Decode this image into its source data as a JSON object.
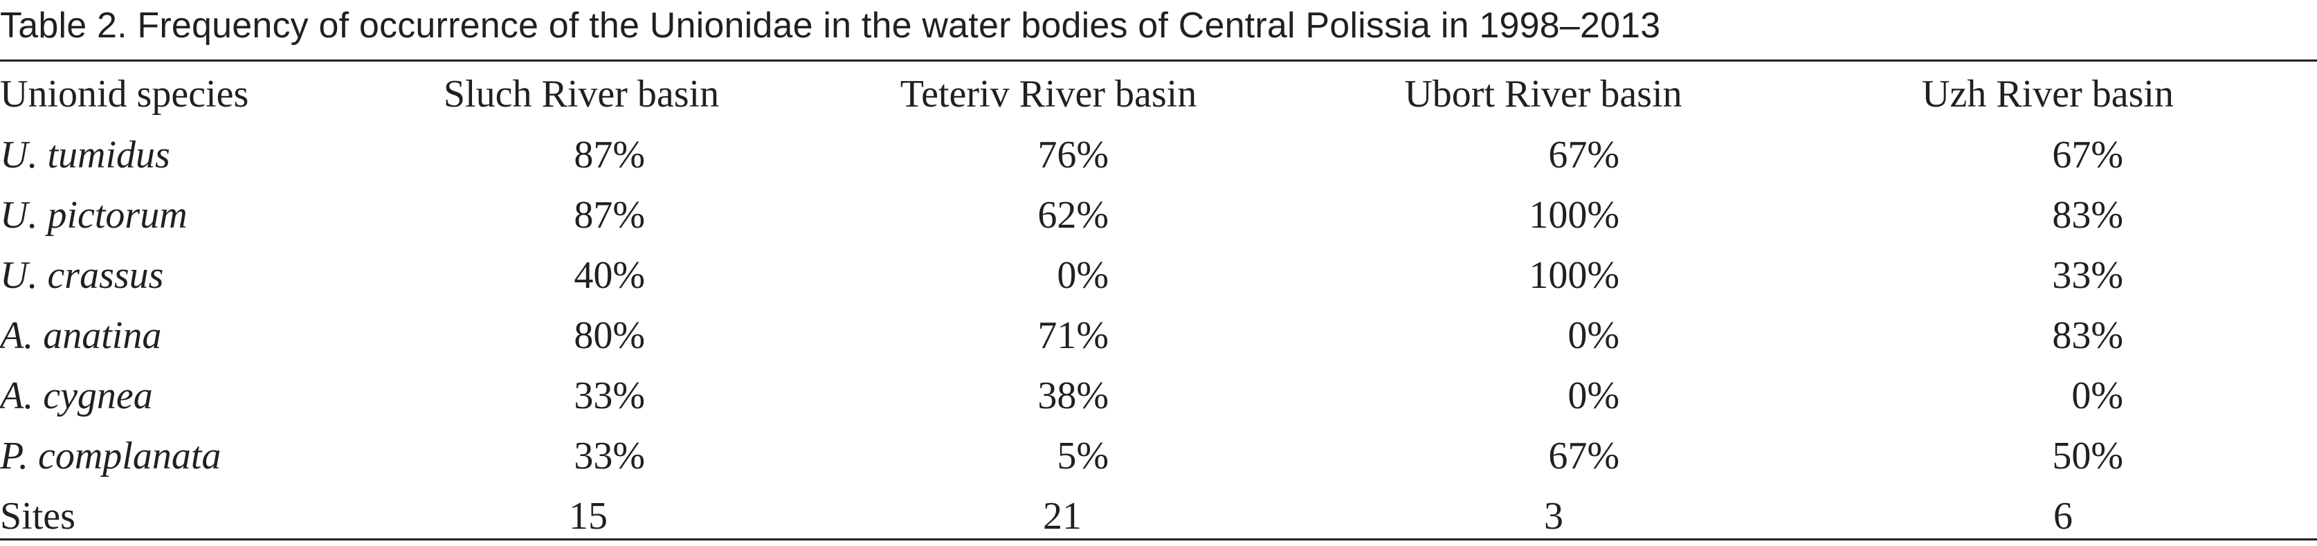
{
  "caption": "Table 2. Frequency of occurrence of the Unionidae in the water bodies of Central Polissia in 1998–2013",
  "table": {
    "headers": [
      "Unionid species",
      "Sluch River basin",
      "Teteriv River basin",
      "Ubort River basin",
      "Uzh River basin"
    ],
    "rows": [
      {
        "species": "U. tumidus",
        "values": [
          "87%",
          "76%",
          "67%",
          "67%"
        ]
      },
      {
        "species": "U. pictorum",
        "values": [
          "87%",
          "62%",
          "100%",
          "83%"
        ]
      },
      {
        "species": "U. crassus",
        "values": [
          "40%",
          "0%",
          "100%",
          "33%"
        ]
      },
      {
        "species": "A. anatina",
        "values": [
          "80%",
          "71%",
          "0%",
          "83%"
        ]
      },
      {
        "species": "A. cygnea",
        "values": [
          "33%",
          "38%",
          "0%",
          "0%"
        ]
      },
      {
        "species": "P. complanata",
        "values": [
          "33%",
          "5%",
          "67%",
          "50%"
        ]
      }
    ],
    "sites_row": {
      "label": "Sites",
      "values": [
        "15",
        "21",
        "3",
        "6"
      ]
    }
  }
}
